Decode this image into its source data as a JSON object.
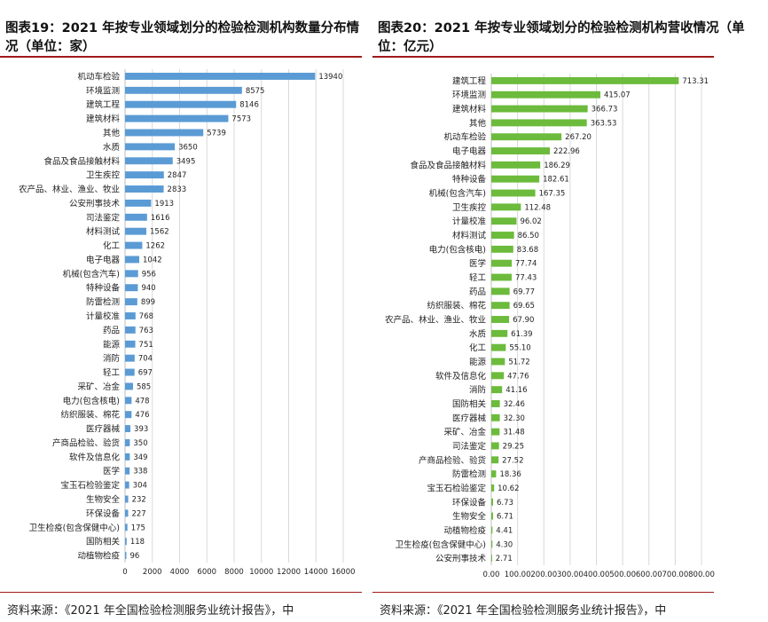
{
  "colors": {
    "left_bar": "#5b9bd5",
    "right_bar": "#6cbb3c",
    "rule": "#a01a1a",
    "grid": "#d9d9d9"
  },
  "left": {
    "title": "图表19：2021 年按专业领域划分的检验检测机构数量分布情况（单位：家）",
    "source": "资料来源：《2021 年全国检验检测服务业统计报告》，中"
  },
  "right": {
    "title": "图表20：2021 年按专业领域划分的检验检测机构营收情况（单位：亿元）",
    "source": "资料来源：《2021 年全国检验检测服务业统计报告》，中"
  },
  "chart_data": [
    {
      "type": "bar",
      "orientation": "horizontal",
      "title": "图表19：2021 年按专业领域划分的检验检测机构数量分布情况（单位：家）",
      "categories": [
        "机动车检验",
        "环境监测",
        "建筑工程",
        "建筑材料",
        "其他",
        "水质",
        "食品及食品接触材料",
        "卫生疾控",
        "农产品、林业、渔业、牧业",
        "公安刑事技术",
        "司法鉴定",
        "材料测试",
        "化工",
        "电子电器",
        "机械(包含汽车)",
        "特种设备",
        "防雷检测",
        "计量校准",
        "药品",
        "能源",
        "消防",
        "轻工",
        "采矿、冶金",
        "电力(包含核电)",
        "纺织服装、棉花",
        "医疗器械",
        "产商品检验、验货",
        "软件及信息化",
        "医学",
        "宝玉石检验鉴定",
        "生物安全",
        "环保设备",
        "卫生检疫(包含保健中心)",
        "国防相关",
        "动植物检疫"
      ],
      "values": [
        13940,
        8575,
        8146,
        7573,
        5739,
        3650,
        3495,
        2847,
        2833,
        1913,
        1616,
        1562,
        1262,
        1042,
        956,
        940,
        899,
        768,
        763,
        751,
        704,
        697,
        585,
        478,
        476,
        393,
        350,
        349,
        338,
        304,
        232,
        227,
        175,
        118,
        96
      ],
      "xlim": [
        0,
        16000
      ],
      "xticks": [
        "0",
        "2000",
        "4000",
        "6000",
        "8000",
        "10000",
        "12000",
        "14000",
        "16000"
      ],
      "grid": true
    },
    {
      "type": "bar",
      "orientation": "horizontal",
      "title": "图表20：2021 年按专业领域划分的检验检测机构营收情况（单位：亿元）",
      "categories": [
        "建筑工程",
        "环境监测",
        "建筑材料",
        "其他",
        "机动车检验",
        "电子电器",
        "食品及食品接触材料",
        "特种设备",
        "机械(包含汽车)",
        "卫生疾控",
        "计量校准",
        "材料测试",
        "电力(包含核电)",
        "医学",
        "轻工",
        "药品",
        "纺织服装、棉花",
        "农产品、林业、渔业、牧业",
        "水质",
        "化工",
        "能源",
        "软件及信息化",
        "消防",
        "国防相关",
        "医疗器械",
        "采矿、冶金",
        "司法鉴定",
        "产商品检验、验货",
        "防雷检测",
        "宝玉石检验鉴定",
        "环保设备",
        "生物安全",
        "动植物检疫",
        "卫生检疫(包含保健中心)",
        "公安刑事技术"
      ],
      "values": [
        713.31,
        415.07,
        366.73,
        363.53,
        267.2,
        222.96,
        186.29,
        182.61,
        167.35,
        112.48,
        96.02,
        86.5,
        83.68,
        77.74,
        77.43,
        69.77,
        69.65,
        67.9,
        61.39,
        55.1,
        51.72,
        47.76,
        41.16,
        32.46,
        32.3,
        31.48,
        29.25,
        27.52,
        18.36,
        10.62,
        6.73,
        6.71,
        4.41,
        4.3,
        2.71
      ],
      "value_labels": [
        "713.31",
        "415.07",
        "366.73",
        "363.53",
        "267.20",
        "222.96",
        "186.29",
        "182.61",
        "167.35",
        "112.48",
        "96.02",
        "86.50",
        "83.68",
        "77.74",
        "77.43",
        "69.77",
        "69.65",
        "67.90",
        "61.39",
        "55.10",
        "51.72",
        "47.76",
        "41.16",
        "32.46",
        "32.30",
        "31.48",
        "29.25",
        "27.52",
        "18.36",
        "10.62",
        "6.73",
        "6.71",
        "4.41",
        "4.30",
        "2.71"
      ],
      "xlim": [
        0,
        800
      ],
      "xticks": [
        "0.00",
        "100.00",
        "200.00",
        "300.00",
        "400.00",
        "500.00",
        "600.00",
        "700.00",
        "800.00"
      ],
      "grid": true
    }
  ]
}
